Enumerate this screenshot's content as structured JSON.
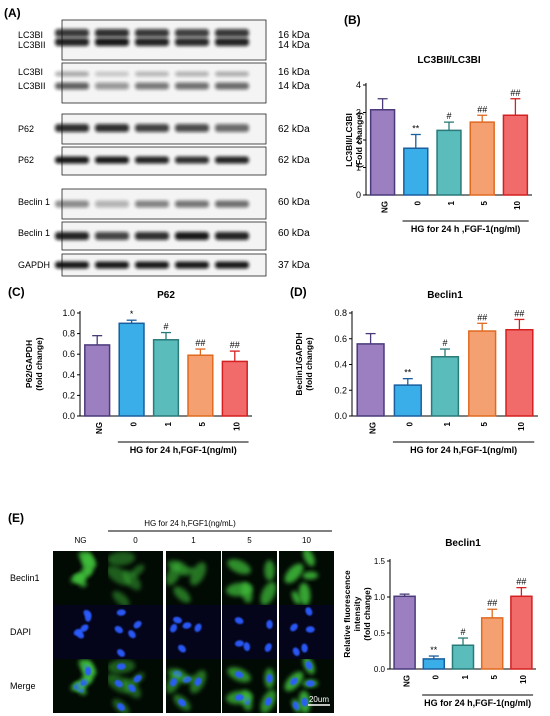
{
  "panel_labels": {
    "A": "(A)",
    "B": "(B)",
    "C": "(C)",
    "D": "(D)",
    "E": "(E)"
  },
  "blots": [
    {
      "rows": [
        {
          "label": "LC3BI",
          "kda": "16 kDa"
        },
        {
          "label": "LC3BII",
          "kda": "14 kDa"
        }
      ]
    },
    {
      "rows": [
        {
          "label": "LC3BI",
          "kda": "16 kDa"
        },
        {
          "label": "LC3BII",
          "kda": "14 kDa"
        }
      ]
    },
    {
      "rows": [
        {
          "label": "P62",
          "kda": "62 kDa"
        }
      ]
    },
    {
      "rows": [
        {
          "label": "P62",
          "kda": "62 kDa"
        }
      ]
    },
    {
      "rows": [
        {
          "label": "Beclin 1",
          "kda": "60 kDa"
        }
      ]
    },
    {
      "rows": [
        {
          "label": "Beclin 1",
          "kda": "60 kDa"
        }
      ]
    },
    {
      "rows": [
        {
          "label": "GAPDH",
          "kda": "37 kDa"
        }
      ]
    }
  ],
  "chart_data": [
    {
      "id": "B",
      "type": "bar",
      "title": "LC3BII/LC3BI",
      "ylabel": [
        "LC3BII/LC3BI",
        "(Fold change)"
      ],
      "xlabel": "HG for 24 h ,FGF-1(ng/ml)",
      "categories": [
        "NG",
        "0",
        "1",
        "5",
        "10"
      ],
      "values": [
        3.1,
        1.7,
        2.35,
        2.65,
        2.9
      ],
      "errors": [
        0.4,
        0.5,
        0.3,
        0.25,
        0.6
      ],
      "significance": [
        "",
        "**",
        "#",
        "##",
        "##"
      ],
      "ylim": [
        0,
        4
      ],
      "yticks": [
        "0",
        "1",
        "2",
        "3",
        "4"
      ],
      "colors": [
        "#9b7fc0",
        "#3aaee8",
        "#5bbcbc",
        "#f4a070",
        "#f26b6b"
      ],
      "edge_colors": [
        "#4a3a7a",
        "#1a5e9e",
        "#2a7a7a",
        "#e06a20",
        "#d42020"
      ]
    },
    {
      "id": "C",
      "type": "bar",
      "title": "P62",
      "ylabel": [
        "P62/GAPDH",
        "(fold change)"
      ],
      "xlabel": "HG for 24 h,FGF-1(ng/ml)",
      "categories": [
        "NG",
        "0",
        "1",
        "5",
        "10"
      ],
      "values": [
        0.69,
        0.9,
        0.74,
        0.59,
        0.53
      ],
      "errors": [
        0.09,
        0.03,
        0.07,
        0.06,
        0.1
      ],
      "significance": [
        "",
        "*",
        "#",
        "##",
        "##"
      ],
      "ylim": [
        0,
        1
      ],
      "yticks": [
        "0.0",
        "0.2",
        "0.4",
        "0.6",
        "0.8",
        "1.0"
      ],
      "colors": [
        "#9b7fc0",
        "#3aaee8",
        "#5bbcbc",
        "#f4a070",
        "#f26b6b"
      ],
      "edge_colors": [
        "#4a3a7a",
        "#1a5e9e",
        "#2a7a7a",
        "#e06a20",
        "#d42020"
      ]
    },
    {
      "id": "D",
      "type": "bar",
      "title": "Beclin1",
      "ylabel": [
        "Beclin1/GAPDH",
        "(fold change)"
      ],
      "xlabel": "HG for 24 h,FGF-1(ng/ml)",
      "categories": [
        "NG",
        "0",
        "1",
        "5",
        "10"
      ],
      "values": [
        0.56,
        0.24,
        0.46,
        0.66,
        0.67
      ],
      "errors": [
        0.08,
        0.05,
        0.06,
        0.06,
        0.08
      ],
      "significance": [
        "",
        "**",
        "#",
        "##",
        "##"
      ],
      "ylim": [
        0,
        0.8
      ],
      "yticks": [
        "0.0",
        "0.2",
        "0.4",
        "0.6",
        "0.8"
      ],
      "colors": [
        "#9b7fc0",
        "#3aaee8",
        "#5bbcbc",
        "#f4a070",
        "#f26b6b"
      ],
      "edge_colors": [
        "#4a3a7a",
        "#1a5e9e",
        "#2a7a7a",
        "#e06a20",
        "#d42020"
      ]
    },
    {
      "id": "E",
      "type": "bar",
      "title": "Beclin1",
      "ylabel": [
        "Relative fluorescence",
        "intensity",
        "(fold change)"
      ],
      "xlabel": "HG for 24 h,FGF-1(ng/ml)",
      "categories": [
        "NG",
        "0",
        "1",
        "5",
        "10"
      ],
      "values": [
        1.01,
        0.14,
        0.33,
        0.71,
        1.01
      ],
      "errors": [
        0.03,
        0.04,
        0.1,
        0.12,
        0.12
      ],
      "significance": [
        "",
        "**",
        "#",
        "##",
        "##"
      ],
      "ylim": [
        0,
        1.5
      ],
      "yticks": [
        "0.0",
        "0.5",
        "1.0",
        "1.5"
      ],
      "colors": [
        "#9b7fc0",
        "#3aaee8",
        "#5bbcbc",
        "#f4a070",
        "#f26b6b"
      ],
      "edge_colors": [
        "#4a3a7a",
        "#1a5e9e",
        "#2a7a7a",
        "#e06a20",
        "#d42020"
      ]
    }
  ],
  "micrographs": {
    "header": "HG for 24 h,FGF1(ng/mL)",
    "columns": [
      "NG",
      "0",
      "1",
      "5",
      "10"
    ],
    "rows": [
      "Beclin1",
      "DAPI",
      "Merge"
    ],
    "scale_bar": "20um",
    "cell_intensity": [
      1.0,
      0.35,
      0.55,
      0.8,
      1.0
    ]
  }
}
